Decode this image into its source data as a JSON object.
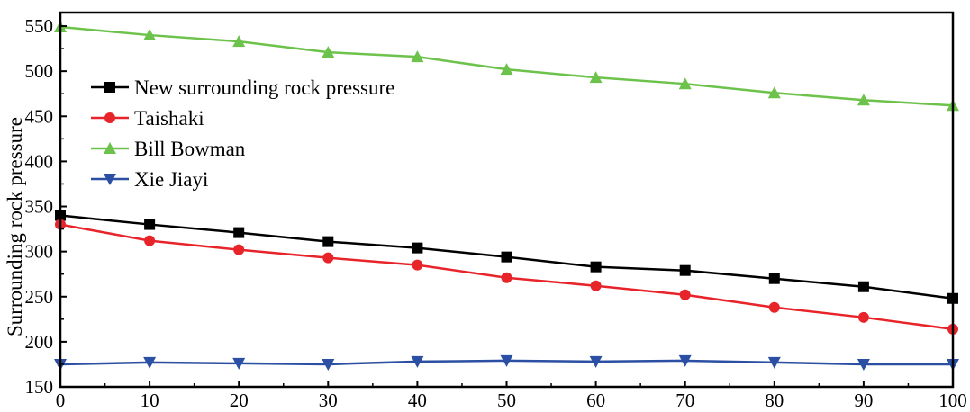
{
  "chart_data": {
    "type": "line",
    "title": "",
    "xlabel": "",
    "ylabel": "Surrounding rock pressure",
    "xlim": [
      0,
      100
    ],
    "ylim": [
      150,
      565
    ],
    "xticks": [
      0,
      10,
      20,
      30,
      40,
      50,
      60,
      70,
      80,
      90,
      100
    ],
    "yticks": [
      150,
      200,
      250,
      300,
      350,
      400,
      450,
      500,
      550
    ],
    "x": [
      0,
      10,
      20,
      30,
      40,
      50,
      60,
      70,
      80,
      90,
      100
    ],
    "legend_position": "upper-left",
    "series": [
      {
        "name": "New surrounding rock pressure",
        "color": "#000000",
        "marker": "square",
        "values": [
          340,
          330,
          321,
          311,
          304,
          294,
          283,
          279,
          270,
          261,
          248
        ]
      },
      {
        "name": "Taishaki",
        "color": "#e8242b",
        "marker": "circle",
        "values": [
          330,
          312,
          302,
          293,
          285,
          271,
          262,
          252,
          238,
          227,
          214
        ]
      },
      {
        "name": "Bill Bowman",
        "color": "#6cc24a",
        "marker": "triangle-up",
        "values": [
          549,
          540,
          533,
          521,
          516,
          502,
          493,
          486,
          476,
          468,
          462
        ]
      },
      {
        "name": "Xie Jiayi",
        "color": "#2b4fa2",
        "marker": "triangle-down",
        "values": [
          175,
          177,
          176,
          175,
          178,
          179,
          178,
          179,
          177,
          175,
          175
        ]
      }
    ]
  }
}
